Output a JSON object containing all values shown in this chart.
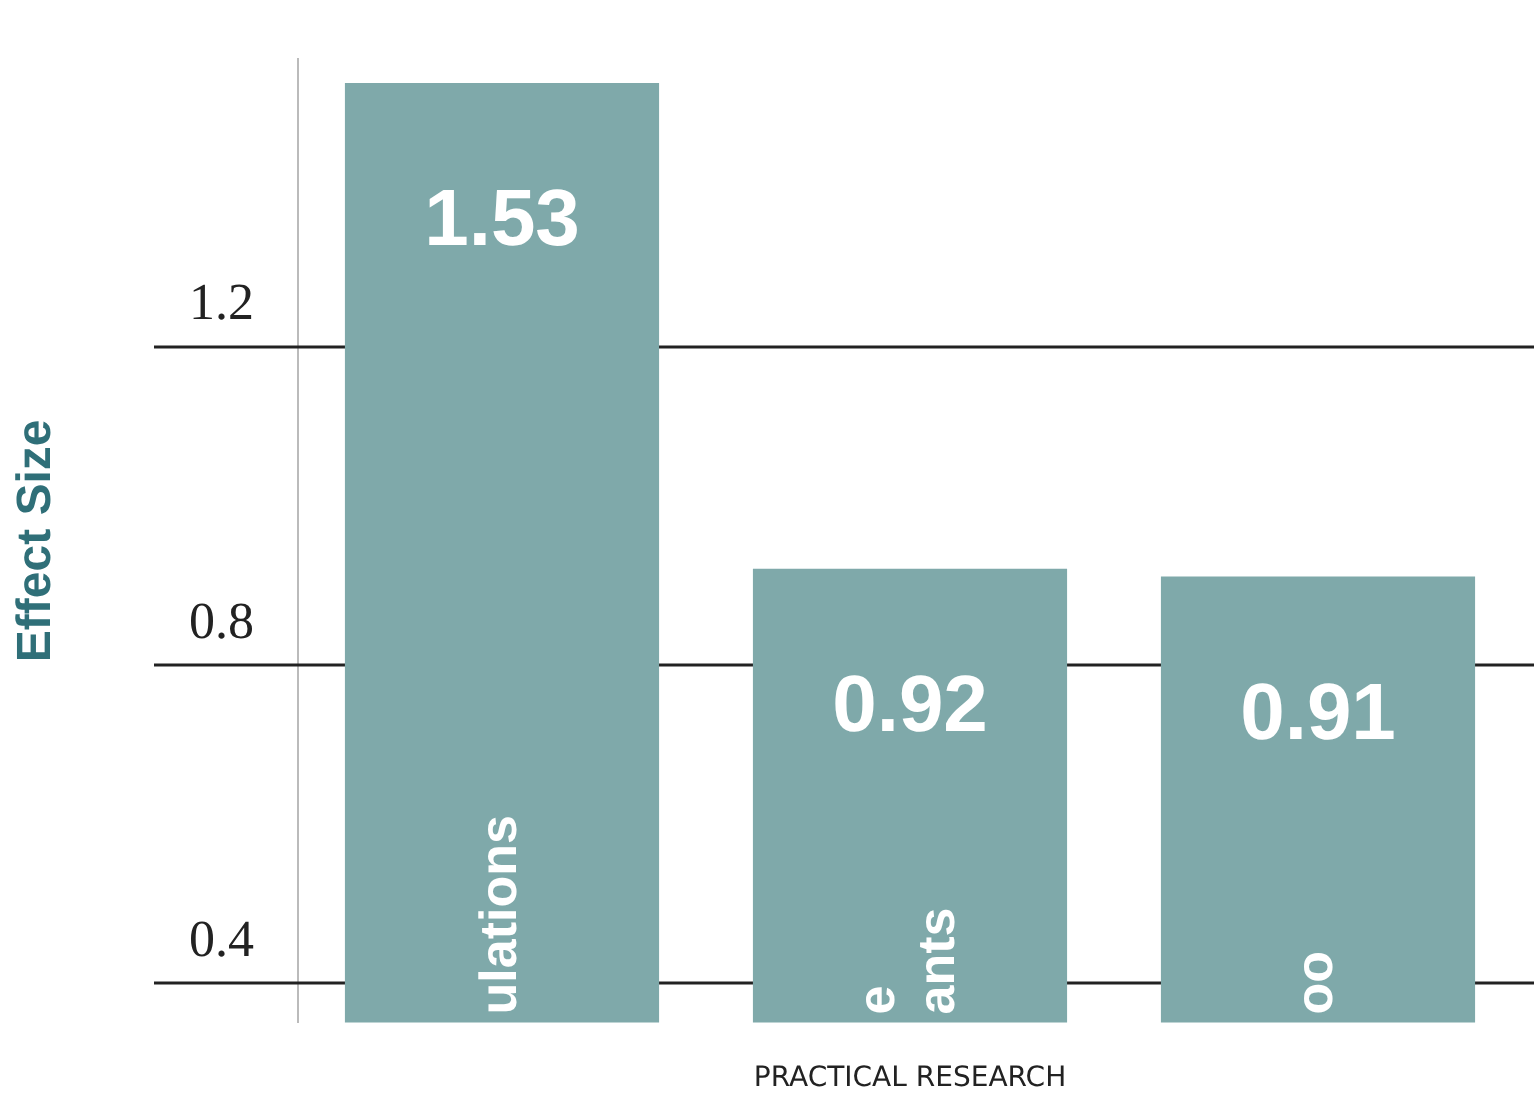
{
  "chart_data": {
    "type": "bar",
    "xlabel": "PRACTICAL RESEARCH",
    "ylabel": "Effect Size",
    "categories": [
      "ulations",
      "e\nants",
      "oo"
    ],
    "values": [
      1.53,
      0.92,
      0.91
    ],
    "color": "#7fa9aa",
    "ylim": [
      0.35,
      1.56
    ],
    "yticks": [
      0.4,
      0.8,
      1.2
    ],
    "grid": "y",
    "data_labels": true,
    "legend": false
  }
}
